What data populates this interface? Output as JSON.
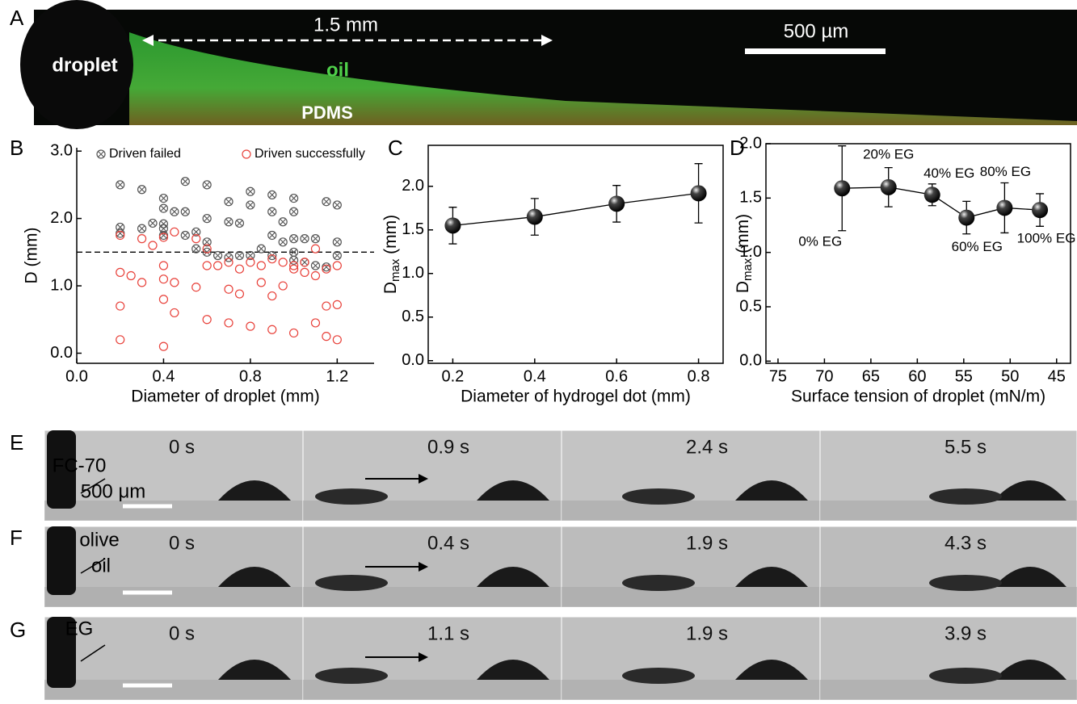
{
  "panel_labels": [
    "A",
    "B",
    "C",
    "D",
    "E",
    "F",
    "G"
  ],
  "panel_a": {
    "distance": "1.5 mm",
    "scale": "500 µm",
    "droplet": "droplet",
    "oil": "oil",
    "substrate": "PDMS"
  },
  "chart_data": [
    {
      "type": "scatter",
      "xlabel": "Diameter of droplet (mm)",
      "ylabel": "D (mm)",
      "xlim": [
        0,
        1.37
      ],
      "ylim": [
        -0.15,
        3.05
      ],
      "xticks": [
        {
          "value": 0,
          "label": "0.0"
        },
        0.4,
        0.8,
        1.2
      ],
      "yticks": [
        {
          "value": 0,
          "label": "0.0"
        },
        {
          "value": 1,
          "label": "1.0"
        },
        {
          "value": 2,
          "label": "2.0"
        },
        {
          "value": 3,
          "label": "3.0"
        }
      ],
      "box": false,
      "legend": "top",
      "reference_line": 1.5,
      "series": [
        {
          "name": "Driven failed",
          "color": "#555555",
          "marker": "circle-x",
          "x": [
            0.2,
            0.2,
            0.2,
            0.3,
            0.3,
            0.35,
            0.4,
            0.4,
            0.4,
            0.4,
            0.4,
            0.45,
            0.5,
            0.5,
            0.5,
            0.55,
            0.55,
            0.6,
            0.6,
            0.6,
            0.6,
            0.65,
            0.7,
            0.7,
            0.7,
            0.75,
            0.75,
            0.8,
            0.8,
            0.8,
            0.85,
            0.9,
            0.9,
            0.9,
            0.9,
            0.95,
            0.95,
            1.0,
            1.0,
            1.0,
            1.0,
            1.0,
            1.05,
            1.05,
            1.1,
            1.1,
            1.15,
            1.15,
            1.2,
            1.2,
            1.2
          ],
          "values": [
            2.5,
            1.87,
            1.78,
            2.43,
            1.85,
            1.93,
            2.3,
            2.15,
            1.92,
            1.85,
            1.75,
            2.1,
            2.55,
            2.1,
            1.75,
            1.8,
            1.55,
            2.5,
            2.0,
            1.65,
            1.5,
            1.45,
            2.25,
            1.95,
            1.42,
            1.93,
            1.45,
            2.4,
            2.2,
            1.45,
            1.55,
            2.35,
            2.1,
            1.75,
            1.45,
            1.95,
            1.65,
            2.3,
            2.1,
            1.7,
            1.5,
            1.38,
            1.7,
            1.35,
            1.7,
            1.3,
            2.25,
            1.28,
            2.2,
            1.65,
            1.45
          ]
        },
        {
          "name": "Driven successfully",
          "color": "#e8413a",
          "marker": "circle",
          "x": [
            0.2,
            0.2,
            0.2,
            0.2,
            0.25,
            0.3,
            0.3,
            0.35,
            0.4,
            0.4,
            0.4,
            0.4,
            0.4,
            0.45,
            0.45,
            0.45,
            0.55,
            0.55,
            0.6,
            0.6,
            0.6,
            0.65,
            0.7,
            0.7,
            0.7,
            0.75,
            0.75,
            0.8,
            0.8,
            0.85,
            0.85,
            0.9,
            0.9,
            0.9,
            0.95,
            0.95,
            1.0,
            1.0,
            1.0,
            1.05,
            1.05,
            1.1,
            1.1,
            1.15,
            1.15,
            1.15,
            1.2,
            1.2,
            1.2,
            1.1
          ],
          "values": [
            1.75,
            1.2,
            0.7,
            0.2,
            1.15,
            1.7,
            1.05,
            1.6,
            1.72,
            1.3,
            1.1,
            0.8,
            0.1,
            1.05,
            0.6,
            1.8,
            1.7,
            0.98,
            1.55,
            1.3,
            0.5,
            1.3,
            1.35,
            0.95,
            0.45,
            0.88,
            1.25,
            1.35,
            0.4,
            1.3,
            1.05,
            1.4,
            0.85,
            0.35,
            1.35,
            1.0,
            1.25,
            1.3,
            0.3,
            1.2,
            1.35,
            1.15,
            0.45,
            1.25,
            0.7,
            0.25,
            1.3,
            0.72,
            0.2,
            1.55
          ]
        }
      ]
    },
    {
      "type": "line",
      "xlabel": "Diameter of hydrogel dot (mm)",
      "ylabel": [
        "D",
        "max",
        " (mm)"
      ],
      "xlim": [
        0.14,
        0.86
      ],
      "ylim": [
        -0.03,
        2.47
      ],
      "xticks": [
        0.2,
        0.4,
        0.6,
        0.8
      ],
      "yticks": [
        {
          "value": 0,
          "label": "0.0"
        },
        0.5,
        {
          "value": 1,
          "label": "1.0"
        },
        1.5,
        {
          "value": 2,
          "label": "2.0"
        }
      ],
      "box": true,
      "x": [
        0.2,
        0.4,
        0.6,
        0.8
      ],
      "series": [
        {
          "color": "#000000",
          "values": [
            1.55,
            1.65,
            1.8,
            1.92
          ],
          "errors": [
            0.21,
            0.21,
            0.21,
            0.34
          ]
        }
      ]
    },
    {
      "type": "line",
      "xlabel": "Surface tension of droplet (mN/m)",
      "ylabel": [
        "D",
        "max",
        " (mm)"
      ],
      "xlim": [
        76.3,
        43.5
      ],
      "ylim": [
        -0.02,
        2.0
      ],
      "xticks": [
        75,
        70,
        65,
        60,
        55,
        50,
        45
      ],
      "yticks": [
        {
          "value": 0,
          "label": "0.0"
        },
        0.5,
        {
          "value": 1,
          "label": "1.0"
        },
        1.5,
        {
          "value": 2,
          "label": "2.0"
        }
      ],
      "box": true,
      "x": [
        68.1,
        63.1,
        58.4,
        54.7,
        50.6,
        46.8
      ],
      "series": [
        {
          "color": "#000000",
          "values": [
            1.59,
            1.6,
            1.53,
            1.32,
            1.41,
            1.39
          ],
          "errors": [
            0.39,
            0.18,
            0.1,
            0.15,
            0.23,
            0.15
          ],
          "point_labels": [
            "0% EG",
            "20% EG",
            "40% EG",
            "60% EG",
            "80% EG",
            "100% EG"
          ]
        }
      ]
    }
  ],
  "image_rows": [
    {
      "notes": [
        "FC-70",
        "500 μm"
      ],
      "times": [
        "0 s",
        "0.9 s",
        "2.4 s",
        "5.5 s"
      ]
    },
    {
      "notes": [
        "olive",
        "oil"
      ],
      "times": [
        "0 s",
        "0.4 s",
        "1.9 s",
        "4.3 s"
      ]
    },
    {
      "notes": [
        "EG"
      ],
      "times": [
        "0 s",
        "1.1 s",
        "1.9 s",
        "3.9 s"
      ]
    }
  ]
}
